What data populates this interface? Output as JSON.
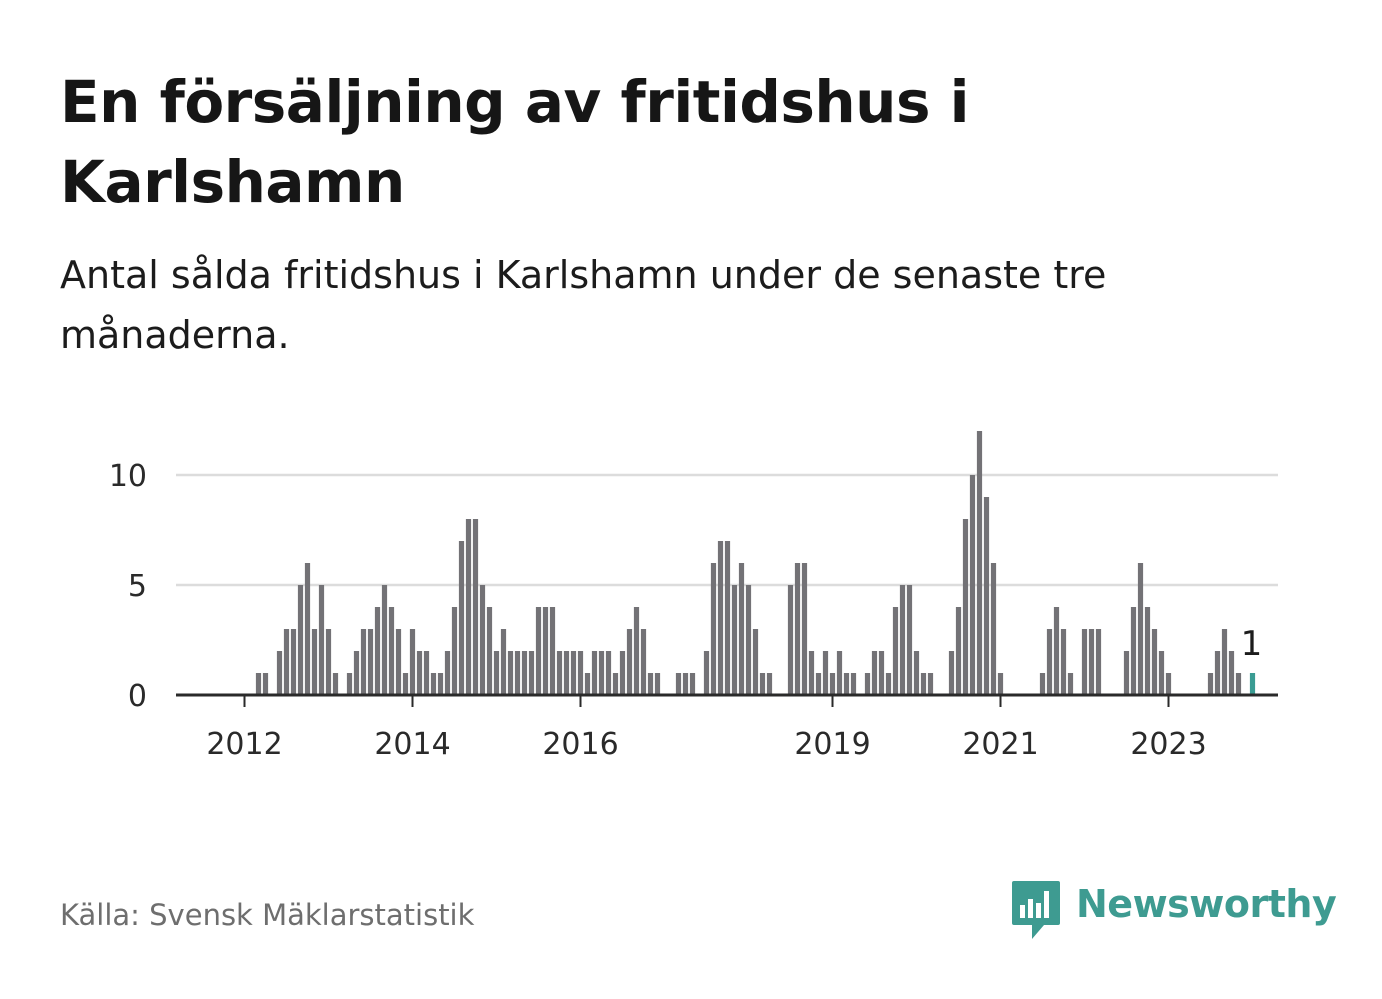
{
  "header": {
    "title": "En försäljning av fritidshus i Karlshamn",
    "subtitle": "Antal sålda fritidshus i Karlshamn under de senaste tre månaderna."
  },
  "footer": {
    "source": "Källa: Svensk Mäklarstatistik",
    "brand": "Newsworthy"
  },
  "colors": {
    "bar": "#737276",
    "highlight": "#3a9c93",
    "grid": "#dcdcdc",
    "axis": "#2a2a2a",
    "brand": "#3e9b91"
  },
  "chart_data": {
    "type": "bar",
    "title": "",
    "xlabel": "",
    "ylabel": "",
    "ylim": [
      0,
      12
    ],
    "yticks": [
      0,
      5,
      10
    ],
    "x_ticks": [
      "2012",
      "2014",
      "2016",
      "2019",
      "2021",
      "2023"
    ],
    "grid": true,
    "annotation": {
      "text": "1",
      "target": "last"
    },
    "x_start": "2011-07",
    "categories": [
      "2011-07",
      "2011-08",
      "2011-09",
      "2011-10",
      "2011-11",
      "2011-12",
      "2012-01",
      "2012-02",
      "2012-03",
      "2012-04",
      "2012-05",
      "2012-06",
      "2012-07",
      "2012-08",
      "2012-09",
      "2012-10",
      "2012-11",
      "2012-12",
      "2013-01",
      "2013-02",
      "2013-03",
      "2013-04",
      "2013-05",
      "2013-06",
      "2013-07",
      "2013-08",
      "2013-09",
      "2013-10",
      "2013-11",
      "2013-12",
      "2014-01",
      "2014-02",
      "2014-03",
      "2014-04",
      "2014-05",
      "2014-06",
      "2014-07",
      "2014-08",
      "2014-09",
      "2014-10",
      "2014-11",
      "2014-12",
      "2015-01",
      "2015-02",
      "2015-03",
      "2015-04",
      "2015-05",
      "2015-06",
      "2015-07",
      "2015-08",
      "2015-09",
      "2015-10",
      "2015-11",
      "2015-12",
      "2016-01",
      "2016-02",
      "2016-03",
      "2016-04",
      "2016-05",
      "2016-06",
      "2016-07",
      "2016-08",
      "2016-09",
      "2016-10",
      "2016-11",
      "2016-12",
      "2017-01",
      "2017-02",
      "2017-03",
      "2017-04",
      "2017-05",
      "2017-06",
      "2017-07",
      "2017-08",
      "2017-09",
      "2017-10",
      "2017-11",
      "2017-12",
      "2018-01",
      "2018-02",
      "2018-03",
      "2018-04",
      "2018-05",
      "2018-06",
      "2018-07",
      "2018-08",
      "2018-09",
      "2018-10",
      "2018-11",
      "2018-12",
      "2019-01",
      "2019-02",
      "2019-03",
      "2019-04",
      "2019-05",
      "2019-06",
      "2019-07",
      "2019-08",
      "2019-09",
      "2019-10",
      "2019-11",
      "2019-12",
      "2020-01",
      "2020-02",
      "2020-03",
      "2020-04",
      "2020-05",
      "2020-06",
      "2020-07",
      "2020-08",
      "2020-09",
      "2020-10",
      "2020-11",
      "2020-12",
      "2021-01",
      "2021-02",
      "2021-03",
      "2021-04",
      "2021-05",
      "2021-06",
      "2021-07",
      "2021-08",
      "2021-09",
      "2021-10",
      "2021-11",
      "2021-12",
      "2022-01",
      "2022-02",
      "2022-03",
      "2022-04",
      "2022-05",
      "2022-06",
      "2022-07",
      "2022-08",
      "2022-09",
      "2022-10",
      "2022-11",
      "2022-12",
      "2023-01",
      "2023-02",
      "2023-03",
      "2023-04",
      "2023-05",
      "2023-06",
      "2023-07",
      "2023-08",
      "2023-09",
      "2023-10",
      "2023-11",
      "2023-12",
      "2024-01",
      "2024-02"
    ],
    "values": [
      0,
      0,
      0,
      0,
      0,
      0,
      0,
      0,
      1,
      1,
      0,
      2,
      3,
      3,
      5,
      6,
      3,
      5,
      3,
      1,
      0,
      1,
      2,
      3,
      3,
      4,
      5,
      4,
      3,
      1,
      3,
      2,
      2,
      1,
      1,
      2,
      4,
      7,
      8,
      8,
      5,
      4,
      2,
      3,
      2,
      2,
      2,
      2,
      4,
      4,
      4,
      2,
      2,
      2,
      2,
      1,
      2,
      2,
      2,
      1,
      2,
      3,
      4,
      3,
      1,
      1,
      0,
      0,
      1,
      1,
      1,
      0,
      2,
      6,
      7,
      7,
      5,
      6,
      5,
      3,
      1,
      1,
      0,
      0,
      5,
      6,
      6,
      2,
      1,
      2,
      1,
      2,
      1,
      1,
      0,
      1,
      2,
      2,
      1,
      4,
      5,
      5,
      2,
      1,
      1,
      0,
      0,
      2,
      4,
      8,
      10,
      12,
      9,
      6,
      1,
      0,
      0,
      0,
      0,
      0,
      1,
      3,
      4,
      3,
      1,
      0,
      3,
      3,
      3,
      0,
      0,
      0,
      2,
      4,
      6,
      4,
      3,
      2,
      1,
      0,
      0,
      0,
      0,
      0,
      1,
      2,
      3,
      2,
      1,
      0,
      1,
      0
    ],
    "highlight_index": 150
  }
}
